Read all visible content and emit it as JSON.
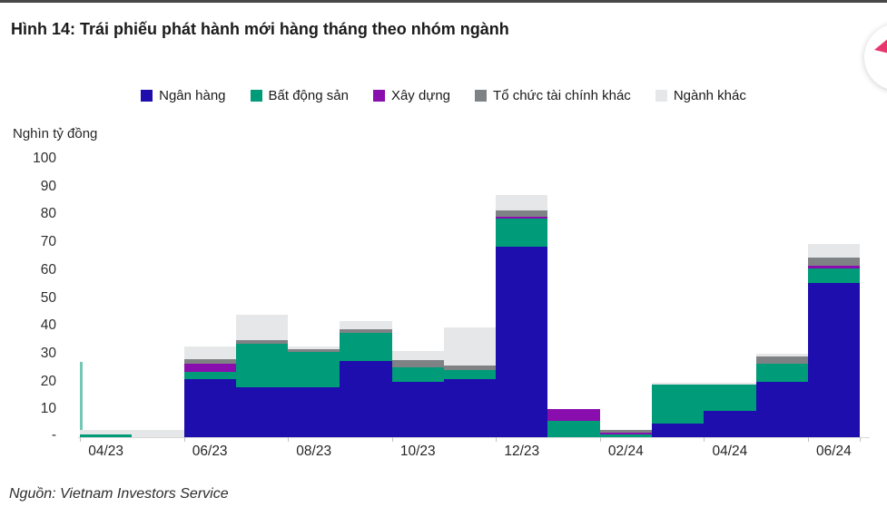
{
  "header": {
    "title": "Hình 14: Trái phiếu phát hành mới hàng tháng theo nhóm ngành"
  },
  "footer": {
    "source": "Nguồn: Vietnam Investors Service"
  },
  "logo": {
    "description": "partially-clipped circular logo at top right",
    "pink": "#E8376E",
    "blue": "#4153B4"
  },
  "chart_data": {
    "type": "bar",
    "subtype": "stacked-column-monthly",
    "title": "Hình 14: Trái phiếu phát hành mới hàng tháng theo nhóm ngành",
    "ylabel": "Nghìn tỷ đồng",
    "xlabel": "",
    "ylim": [
      0,
      100
    ],
    "ytick_step": 10,
    "yticks": [
      100,
      90,
      80,
      70,
      60,
      50,
      40,
      30,
      20,
      10
    ],
    "zero_tick_label": "-",
    "grid": false,
    "legend_position": "top-center",
    "clipped_first_category": true,
    "categories": [
      "03/23 (clipped at left edge)",
      "04/23",
      "05/23",
      "06/23",
      "07/23",
      "08/23",
      "09/23",
      "10/23",
      "11/23",
      "12/23",
      "01/24",
      "02/24",
      "03/24",
      "04/24",
      "05/24",
      "06/24"
    ],
    "x_tick_labels": [
      "04/23",
      "06/23",
      "08/23",
      "10/23",
      "12/23",
      "02/24",
      "04/24",
      "06/24"
    ],
    "series": [
      {
        "name": "Ngân hàng",
        "color": "#1E0EAD",
        "values": [
          0,
          0,
          0,
          21,
          18,
          18,
          27.5,
          20,
          21,
          68.5,
          0,
          0,
          5,
          9.5,
          20,
          55.5
        ]
      },
      {
        "name": "Bất động sản",
        "color": "#009B78",
        "values": [
          27,
          1,
          0,
          2.5,
          15.5,
          12.5,
          10,
          5,
          3,
          10,
          6,
          1,
          14,
          9.4,
          6.5,
          5
        ]
      },
      {
        "name": "Xây dựng",
        "color": "#8A0DAE",
        "values": [
          0,
          0,
          0,
          3,
          0,
          0,
          0,
          0,
          0,
          0.7,
          4,
          0.7,
          0,
          0,
          0,
          1
        ]
      },
      {
        "name": "Tổ chức tài chính khác",
        "color": "#7F8285",
        "values": [
          0,
          0,
          0,
          1.5,
          1.5,
          1,
          1.3,
          2.7,
          1.7,
          2.3,
          0,
          0.8,
          0,
          0,
          2.5,
          3.1
        ]
      },
      {
        "name": "Ngành khác",
        "color": "#E6E7E8",
        "values": [
          0,
          1.5,
          2.7,
          4.5,
          9,
          1,
          3,
          3.3,
          13.8,
          5.5,
          0,
          0,
          0.6,
          0.6,
          1,
          4.8
        ]
      }
    ],
    "totals": [
      27,
      2.5,
      2.7,
      32.5,
      44,
      32.5,
      41.8,
      31,
      39.5,
      87,
      10,
      2.5,
      19.6,
      19.5,
      30,
      69.4
    ]
  }
}
